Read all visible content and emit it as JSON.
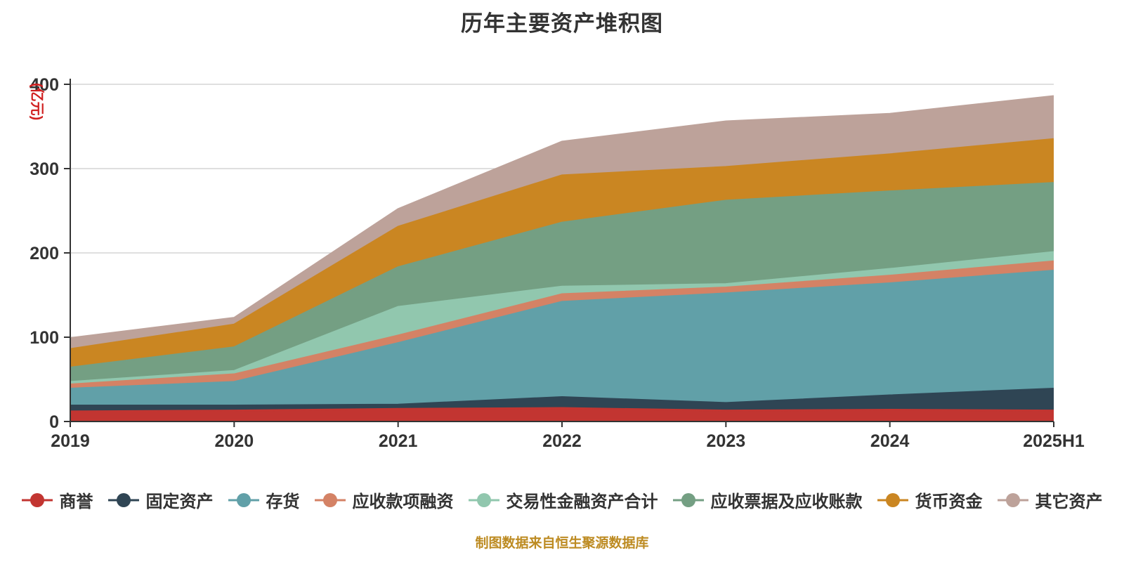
{
  "title": "历年主要资产堆积图",
  "caption": "制图数据来自恒生聚源数据库",
  "axis": {
    "y_name": "(亿元)",
    "y_name_color": "#d02020",
    "axis_line_color": "#333333",
    "tick_label_color": "#333333",
    "gridline_color": "#cccccc"
  },
  "chart_data": {
    "type": "area",
    "stacked": true,
    "title": "历年主要资产堆积图",
    "ylabel": "(亿元)",
    "xlabel": "",
    "ylim": [
      0,
      400
    ],
    "y_ticks": [
      0,
      100,
      200,
      300,
      400
    ],
    "grid": true,
    "legend_position": "bottom",
    "categories": [
      "2019",
      "2020",
      "2021",
      "2022",
      "2023",
      "2024",
      "2025H1"
    ],
    "series": [
      {
        "id": "goodwill",
        "name": "商誉",
        "color": "#c23531",
        "values": [
          12,
          13,
          15,
          16,
          13,
          14,
          13
        ]
      },
      {
        "id": "fixed-assets",
        "name": "固定资产",
        "color": "#2f4554",
        "values": [
          7,
          6,
          5,
          13,
          9,
          17,
          26
        ]
      },
      {
        "id": "inventory",
        "name": "存货",
        "color": "#61a0a8",
        "values": [
          20,
          28,
          73,
          113,
          130,
          133,
          140
        ]
      },
      {
        "id": "receivables-financing",
        "name": "应收款项融资",
        "color": "#d48265",
        "values": [
          5,
          9,
          9,
          9,
          7,
          9,
          11
        ]
      },
      {
        "id": "trading-financial-assets",
        "name": "交易性金融资产合计",
        "color": "#91c7ae",
        "values": [
          3,
          4,
          34,
          9,
          4,
          8,
          11
        ]
      },
      {
        "id": "notes-accounts-receivable",
        "name": "应收票据及应收账款",
        "color": "#749f83",
        "values": [
          17,
          28,
          47,
          76,
          99,
          92,
          82
        ]
      },
      {
        "id": "cash",
        "name": "货币资金",
        "color": "#ca8622",
        "values": [
          22,
          27,
          48,
          56,
          40,
          44,
          52
        ]
      },
      {
        "id": "other-assets",
        "name": "其它资产",
        "color": "#bda29a",
        "values": [
          13,
          8,
          21,
          40,
          54,
          48,
          51
        ]
      }
    ],
    "totals": [
      99,
      123,
      252,
      332,
      356,
      365,
      386
    ]
  }
}
